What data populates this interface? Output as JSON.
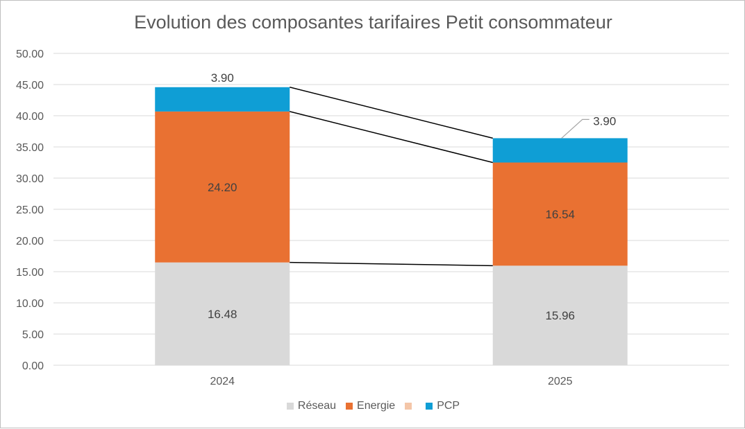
{
  "chart_data": {
    "type": "bar",
    "stacked": true,
    "title": "Evolution des composantes tarifaires Petit consommateur",
    "categories": [
      "2024",
      "2025"
    ],
    "ylim": [
      0,
      50
    ],
    "yticks": [
      "0.00",
      "5.00",
      "10.00",
      "15.00",
      "20.00",
      "25.00",
      "30.00",
      "35.00",
      "40.00",
      "45.00",
      "50.00"
    ],
    "grid": true,
    "legend_position": "bottom",
    "series": [
      {
        "name": "Réseau",
        "values": [
          16.48,
          15.96
        ],
        "labels": [
          "16.48",
          "15.96"
        ],
        "color": "#d9d9d9"
      },
      {
        "name": "Energie",
        "values": [
          24.2,
          16.54
        ],
        "labels": [
          "24.20",
          "16.54"
        ],
        "color": "#e97132"
      },
      {
        "name": "",
        "values": [
          0,
          0
        ],
        "labels": [
          "",
          ""
        ],
        "color": "#f4c6a8"
      },
      {
        "name": "PCP",
        "values": [
          3.9,
          3.9
        ],
        "labels": [
          "3.90",
          "3.90"
        ],
        "color": "#0f9ed5"
      }
    ],
    "connector_lines": true
  }
}
